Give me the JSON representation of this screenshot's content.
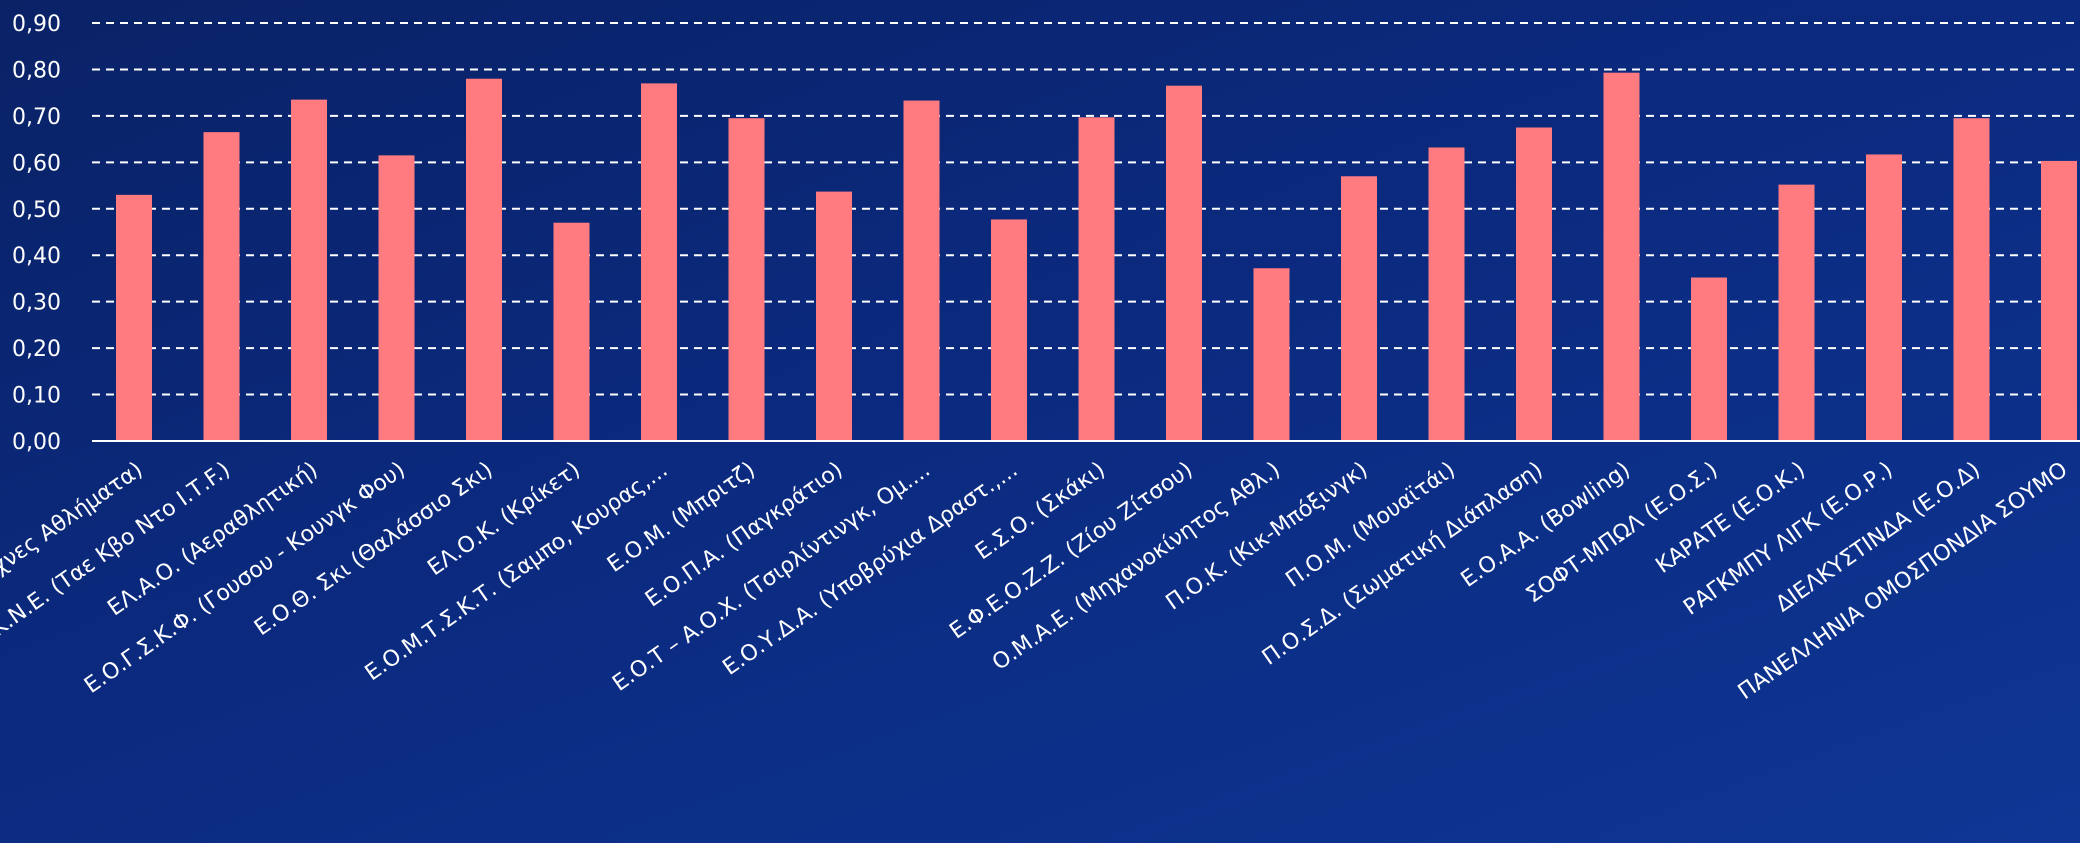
{
  "chart_data": {
    "type": "bar",
    "title": "",
    "xlabel": "",
    "ylabel": "",
    "ylim": [
      0,
      0.9
    ],
    "yticks": [
      "0,00",
      "0,10",
      "0,20",
      "0,30",
      "0,40",
      "0,50",
      "0,60",
      "0,70",
      "0,80",
      "0,90"
    ],
    "grid": true,
    "bar_color": "#ff7b80",
    "categories": [
      "Ε.Ο.Κ.Π. (Κικ-Μπόξινγκ Πολεμικές Τέχνες Αθλήματα)",
      "Ε.Ο.Τ.Κ.Ν.Ε. (Ταε Κβο Ντο Ι.Τ.F.)",
      "ΕΛ.Α.Ο. (Αεραθλητική)",
      "Ε.Ο.Γ.Σ.Κ.Φ. (Γουσου - Κουνγκ Φου)",
      "Ε.Ο.Θ. Σκι (Θαλάσσιο Σκι)",
      "ΕΛ.Ο.Κ. (Κρίκετ)",
      "Ε.Ο.Μ.Τ.Σ.Κ.Τ. (Σαμπο, Κουρας,...",
      "Ε.Ο.Μ. (Μπριτζ)",
      "Ε.Ο.Π.Α. (Παγκράτιο)",
      "Ε.Ο.Τ – Α.Ο.Χ. (Τσιρλίντινγκ, Ομ....",
      "Ε.Ο.Υ.Δ.Α. (Υποβρύχια Δραστ.,...",
      "Ε.Σ.Ο. (Σκάκι)",
      "Ε.Φ.Ε.Ο.Ζ.Ζ. (Ζίου Ζίτσου)",
      "Ο.Μ.Α.Ε. (Μηχανοκίνητος Αθλ.)",
      "Π.Ο.Κ. (Κικ-Μπόξινγκ)",
      "Π.Ο.Μ. (Μουαϊτάι)",
      "Π.Ο.Σ.Δ. (Σωματική Διάπλαση)",
      "Ε.Ο.Α.Α. (Bowling)",
      "ΣΟΦΤ-ΜΠΩΛ (Ε.Ο.Σ.)",
      "ΚΑΡΑΤΕ (Ε.Ο.Κ.)",
      "ΡΑΓΚΜΠΥ ΛΙΓΚ (Ε.Ο.Ρ.)",
      "ΔΙΕΛΚΥΣΤΙΝΔΑ (Ε.Ο.Δ)",
      "ΠΑΝΕΛΛΗΝΙΑ ΟΜΟΣΠΟΝΔΙΑ ΣΟΥΜΟ"
    ],
    "values": [
      0.53,
      0.665,
      0.735,
      0.615,
      0.78,
      0.47,
      0.77,
      0.695,
      0.537,
      0.733,
      0.477,
      0.697,
      0.765,
      0.372,
      0.57,
      0.632,
      0.675,
      0.793,
      0.352,
      0.552,
      0.617,
      0.695,
      0.603
    ]
  }
}
